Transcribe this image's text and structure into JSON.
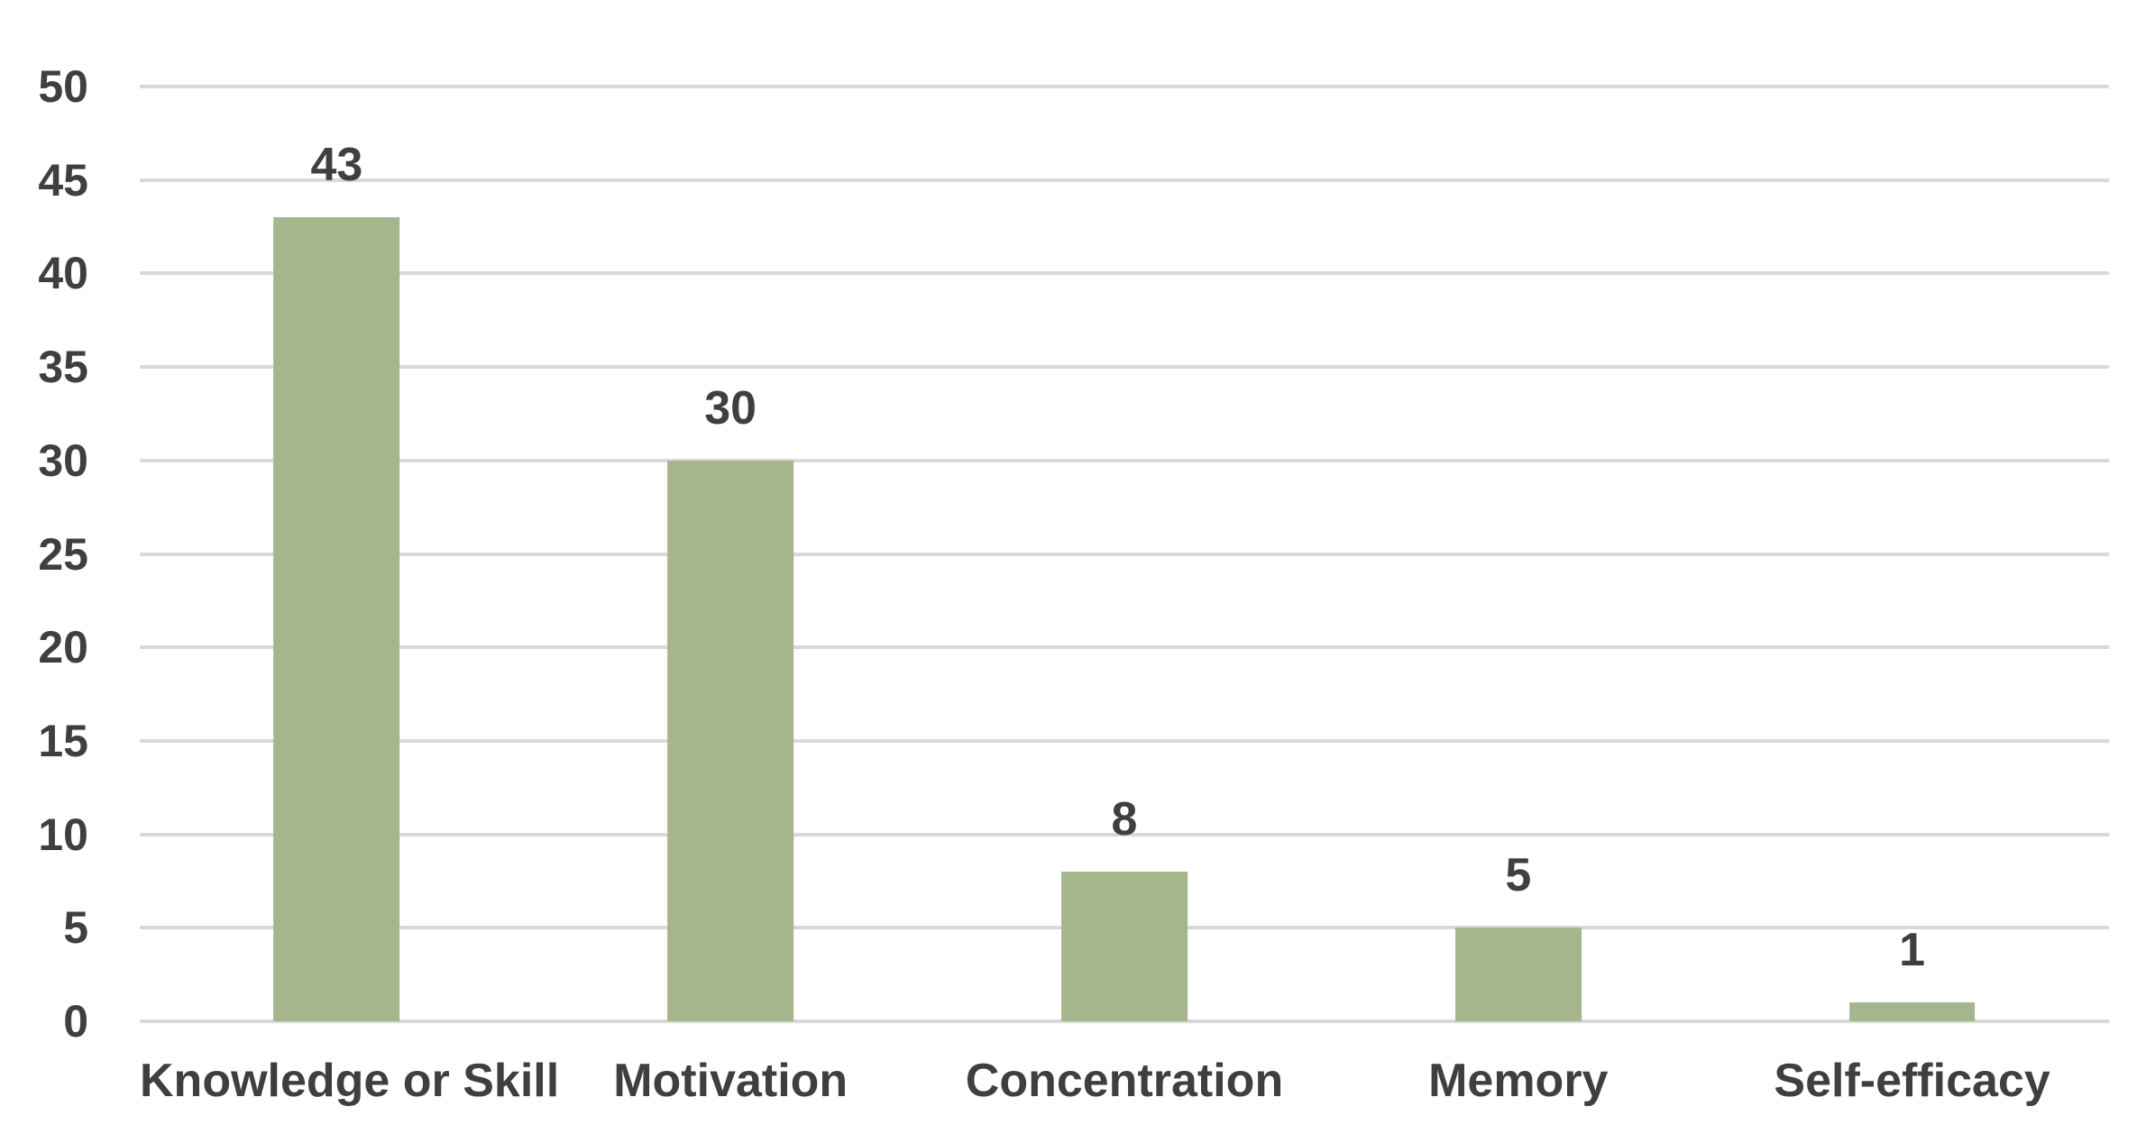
{
  "chart_data": {
    "type": "bar",
    "title": "",
    "xlabel": "",
    "ylabel": "",
    "categories": [
      "Knowledge or Skill",
      "Motivation",
      "Concentration",
      "Memory",
      "Self-efficacy"
    ],
    "values": [
      43,
      30,
      8,
      5,
      1
    ],
    "value_labels": [
      "43",
      "30",
      "8",
      "5",
      "1"
    ],
    "ylim": [
      0,
      50
    ],
    "ytick_step": 5,
    "yticks": [
      "50",
      "45",
      "40",
      "35",
      "30",
      "25",
      "20",
      "15",
      "10",
      "5",
      "0"
    ],
    "grid": true,
    "legend": "none",
    "bar_color": "#a5b68c",
    "gridline_color": "#d9d9d9",
    "text_color": "#3f3f3f",
    "background_color": "#ffffff"
  }
}
